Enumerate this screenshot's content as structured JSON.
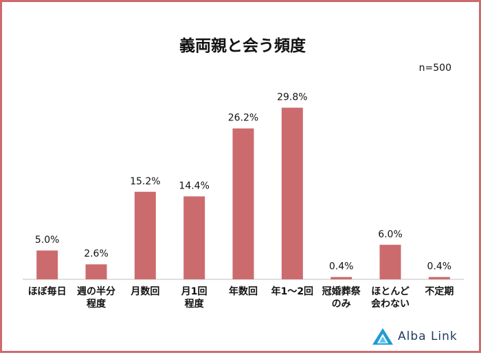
{
  "note": "n=500",
  "logo_text": "Alba Link",
  "colors": {
    "bar": "#cc6b6e",
    "frame": "#cc6b6e",
    "logo": "#1f9bd6"
  },
  "chart_data": {
    "type": "bar",
    "title": "義両親と会う頻度",
    "xlabel": "",
    "ylabel": "",
    "ylim": [
      0,
      35
    ],
    "grid": false,
    "categories": [
      [
        "ほぼ毎日"
      ],
      [
        "週の半分",
        "程度"
      ],
      [
        "月数回"
      ],
      [
        "月1回",
        "程度"
      ],
      [
        "年数回"
      ],
      [
        "年1～2回"
      ],
      [
        "冠婚葬祭",
        "のみ"
      ],
      [
        "ほとんど",
        "会わない"
      ],
      [
        "不定期"
      ]
    ],
    "values": [
      5.0,
      2.6,
      15.2,
      14.4,
      26.2,
      29.8,
      0.4,
      6.0,
      0.4
    ],
    "labels": [
      "5.0%",
      "2.6%",
      "15.2%",
      "14.4%",
      "26.2%",
      "29.8%",
      "0.4%",
      "6.0%",
      "0.4%"
    ]
  }
}
